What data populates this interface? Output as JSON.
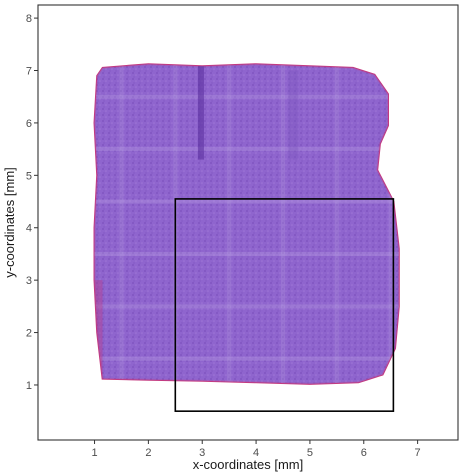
{
  "chart_data": {
    "type": "scatter",
    "xlabel": "x-coordinates [mm]",
    "ylabel": "y-coordinates [mm]",
    "xlim": [
      -0.05,
      7.75
    ],
    "ylim": [
      -0.05,
      8.25
    ],
    "x_ticks": [
      1,
      2,
      3,
      4,
      5,
      6,
      7
    ],
    "y_ticks": [
      1,
      2,
      3,
      4,
      5,
      6,
      7,
      8
    ],
    "grid": false,
    "tissue_outline_mm": [
      [
        1.15,
        7.05
      ],
      [
        2.0,
        7.12
      ],
      [
        3.0,
        7.08
      ],
      [
        4.0,
        7.12
      ],
      [
        5.0,
        7.08
      ],
      [
        5.8,
        7.05
      ],
      [
        6.2,
        6.92
      ],
      [
        6.45,
        6.55
      ],
      [
        6.45,
        5.95
      ],
      [
        6.3,
        5.6
      ],
      [
        6.25,
        5.1
      ],
      [
        6.55,
        4.5
      ],
      [
        6.65,
        3.6
      ],
      [
        6.65,
        2.5
      ],
      [
        6.58,
        1.7
      ],
      [
        6.35,
        1.2
      ],
      [
        5.9,
        1.05
      ],
      [
        5.0,
        1.02
      ],
      [
        4.0,
        1.05
      ],
      [
        3.0,
        1.08
      ],
      [
        2.0,
        1.1
      ],
      [
        1.15,
        1.12
      ],
      [
        1.05,
        2.0
      ],
      [
        1.0,
        3.0
      ],
      [
        1.0,
        4.0
      ],
      [
        1.05,
        5.0
      ],
      [
        1.0,
        6.0
      ],
      [
        1.05,
        6.9
      ]
    ],
    "selection_box_mm": {
      "x_min": 2.5,
      "x_max": 6.55,
      "y_min": 0.5,
      "y_max": 4.55
    },
    "colors": {
      "tissue_base": "#8a5ac8",
      "tissue_dark": "#5a2f9e",
      "tissue_edge": "#c0307a",
      "box": "#000000"
    }
  }
}
